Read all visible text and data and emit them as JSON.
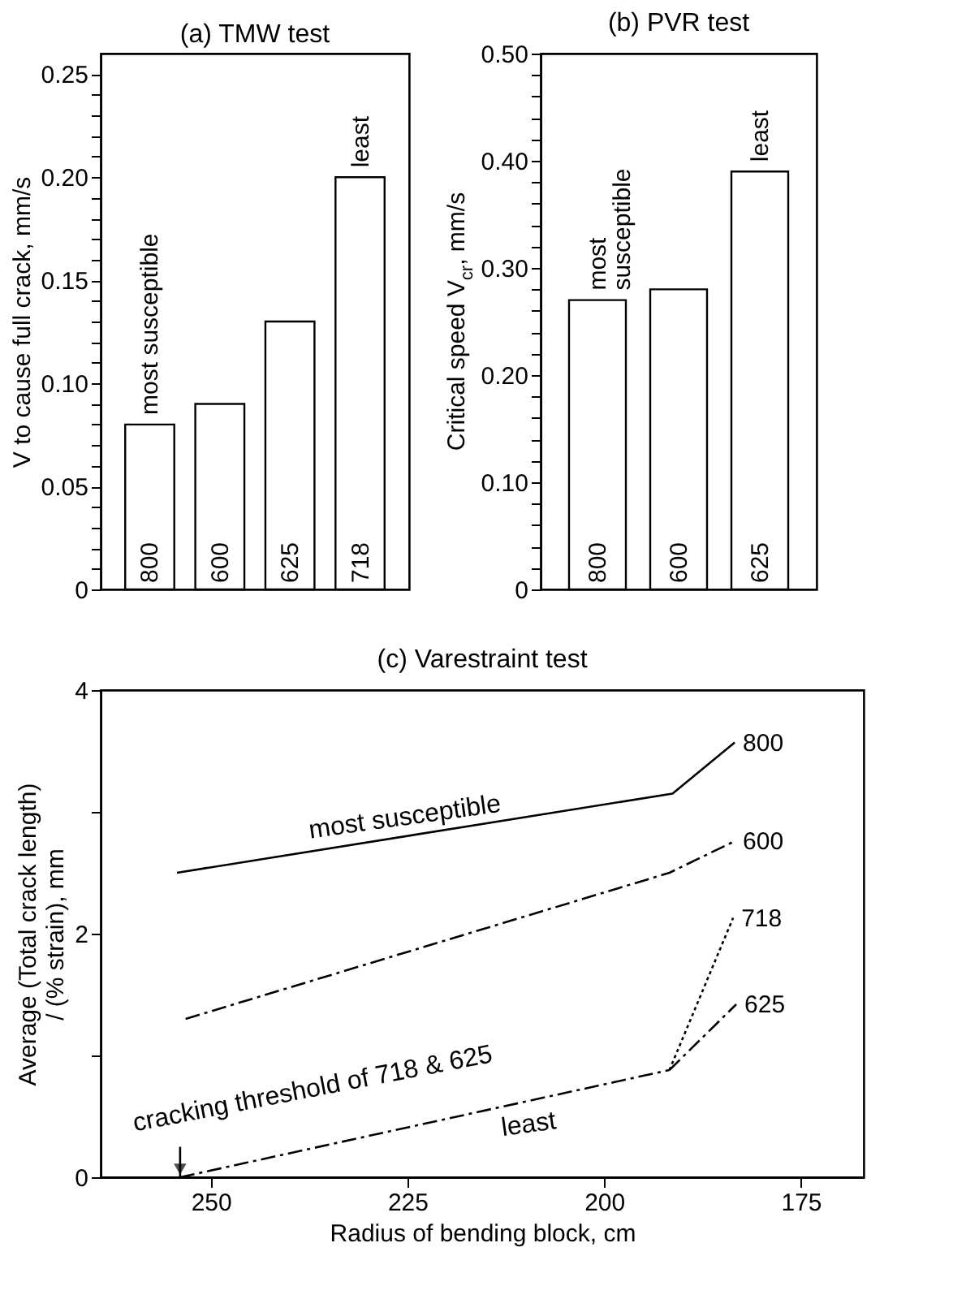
{
  "chart_data": [
    {
      "type": "bar",
      "title": "(a) TMW test",
      "ylabel": "V to cause full crack, mm/s",
      "categories": [
        "800",
        "600",
        "625",
        "718"
      ],
      "values": [
        0.08,
        0.09,
        0.13,
        0.2
      ],
      "color": "#ffffff",
      "ylim": [
        0,
        0.26
      ],
      "yticks": [
        0,
        {
          "value": 0.01,
          "label": null
        },
        {
          "value": 0.02,
          "label": null
        },
        {
          "value": 0.03,
          "label": null
        },
        {
          "value": 0.04,
          "label": null
        },
        {
          "value": 0.05,
          "label": "0.05"
        },
        {
          "value": 0.06,
          "label": null
        },
        {
          "value": 0.07,
          "label": null
        },
        {
          "value": 0.08,
          "label": null
        },
        {
          "value": 0.09,
          "label": null
        },
        {
          "value": 0.1,
          "label": "0.10"
        },
        {
          "value": 0.11,
          "label": null
        },
        {
          "value": 0.12,
          "label": null
        },
        {
          "value": 0.13,
          "label": null
        },
        {
          "value": 0.14,
          "label": null
        },
        {
          "value": 0.15,
          "label": "0.15"
        },
        {
          "value": 0.16,
          "label": null
        },
        {
          "value": 0.17,
          "label": null
        },
        {
          "value": 0.18,
          "label": null
        },
        {
          "value": 0.19,
          "label": null
        },
        {
          "value": 0.2,
          "label": "0.20"
        },
        {
          "value": 0.21,
          "label": null
        },
        {
          "value": 0.22,
          "label": null
        },
        {
          "value": 0.23,
          "label": null
        },
        {
          "value": 0.24,
          "label": null
        },
        {
          "value": 0.25,
          "label": "0.25"
        }
      ],
      "tick_labels": "y",
      "grid": false,
      "annotations": [
        {
          "text": "most susceptible",
          "x": "800",
          "y": 0.08
        },
        {
          "text": "least",
          "x": "718",
          "y": 0.2
        }
      ]
    },
    {
      "type": "bar",
      "title": "(b) PVR test",
      "ylabel": "Critical speed V$_{cr}$, mm/s",
      "categories": [
        "800",
        "600",
        "625"
      ],
      "values": [
        0.27,
        0.28,
        0.39
      ],
      "color": "#ffffff",
      "ylim": [
        0,
        0.5
      ],
      "yticks": [
        0,
        {
          "value": 0.02,
          "label": null
        },
        {
          "value": 0.04,
          "label": null
        },
        {
          "value": 0.06,
          "label": null
        },
        {
          "value": 0.08,
          "label": null
        },
        {
          "value": 0.1,
          "label": "0.10"
        },
        {
          "value": 0.12,
          "label": null
        },
        {
          "value": 0.14,
          "label": null
        },
        {
          "value": 0.16,
          "label": null
        },
        {
          "value": 0.18,
          "label": null
        },
        {
          "value": 0.2,
          "label": "0.20"
        },
        {
          "value": 0.22,
          "label": null
        },
        {
          "value": 0.24,
          "label": null
        },
        {
          "value": 0.26,
          "label": null
        },
        {
          "value": 0.28,
          "label": null
        },
        {
          "value": 0.3,
          "label": "0.30"
        },
        {
          "value": 0.32,
          "label": null
        },
        {
          "value": 0.34,
          "label": null
        },
        {
          "value": 0.36,
          "label": null
        },
        {
          "value": 0.38,
          "label": null
        },
        {
          "value": 0.4,
          "label": "0.40"
        },
        {
          "value": 0.42,
          "label": null
        },
        {
          "value": 0.44,
          "label": null
        },
        {
          "value": 0.46,
          "label": null
        },
        {
          "value": 0.48,
          "label": null
        },
        {
          "value": 0.5,
          "label": "0.50"
        }
      ],
      "tick_labels": "y",
      "grid": false,
      "annotations": [
        {
          "text": "most\nsusceptible",
          "x": "800",
          "y": 0.27
        },
        {
          "text": "least",
          "x": "625",
          "y": 0.39
        }
      ]
    },
    {
      "type": "line",
      "title": "(c) Varestraint test",
      "xlabel": "Radius of bending block, cm",
      "ylabel": "Average (Total crack length)\n/ (% strain), mm",
      "xlim": [
        264,
        167
      ],
      "xticks": [
        250,
        225,
        200,
        175
      ],
      "ylim": [
        0,
        4
      ],
      "yticks": [
        0,
        {
          "value": 1,
          "label": null
        },
        2,
        {
          "value": 3,
          "label": null
        },
        4
      ],
      "grid": false,
      "marker": "none",
      "series": [
        {
          "name": "800",
          "color": "#000000",
          "line_style": "solid",
          "x": [
            254.3,
            191.3,
            183.4
          ],
          "values": [
            2.5,
            3.15,
            3.57
          ]
        },
        {
          "name": "600",
          "color": "#000000",
          "line_style": "dashed",
          "x": [
            253.2,
            191.7,
            183.4
          ],
          "values": [
            1.3,
            2.5,
            2.76
          ]
        },
        {
          "color": "#000000",
          "line_style": "dashed",
          "x": [
            253.9,
            191.7
          ],
          "values": [
            0,
            0.88
          ]
        },
        {
          "name": "718",
          "color": "#000000",
          "line_style": "dotted",
          "x": [
            191.7,
            183.6
          ],
          "values": [
            0.88,
            2.13
          ]
        },
        {
          "name": "625",
          "color": "#000000",
          "line_style": "dashed",
          "x": [
            191.7,
            183.2
          ],
          "values": [
            0.88,
            1.42
          ]
        }
      ],
      "annotations": [
        {
          "text": "most susceptible",
          "x": 225,
          "y": 2.8
        },
        {
          "text": "cracking threshold of 718 & 625",
          "x": 253.9,
          "y": 0
        },
        {
          "text": "least",
          "x": 210,
          "y": 0.62
        }
      ]
    }
  ]
}
